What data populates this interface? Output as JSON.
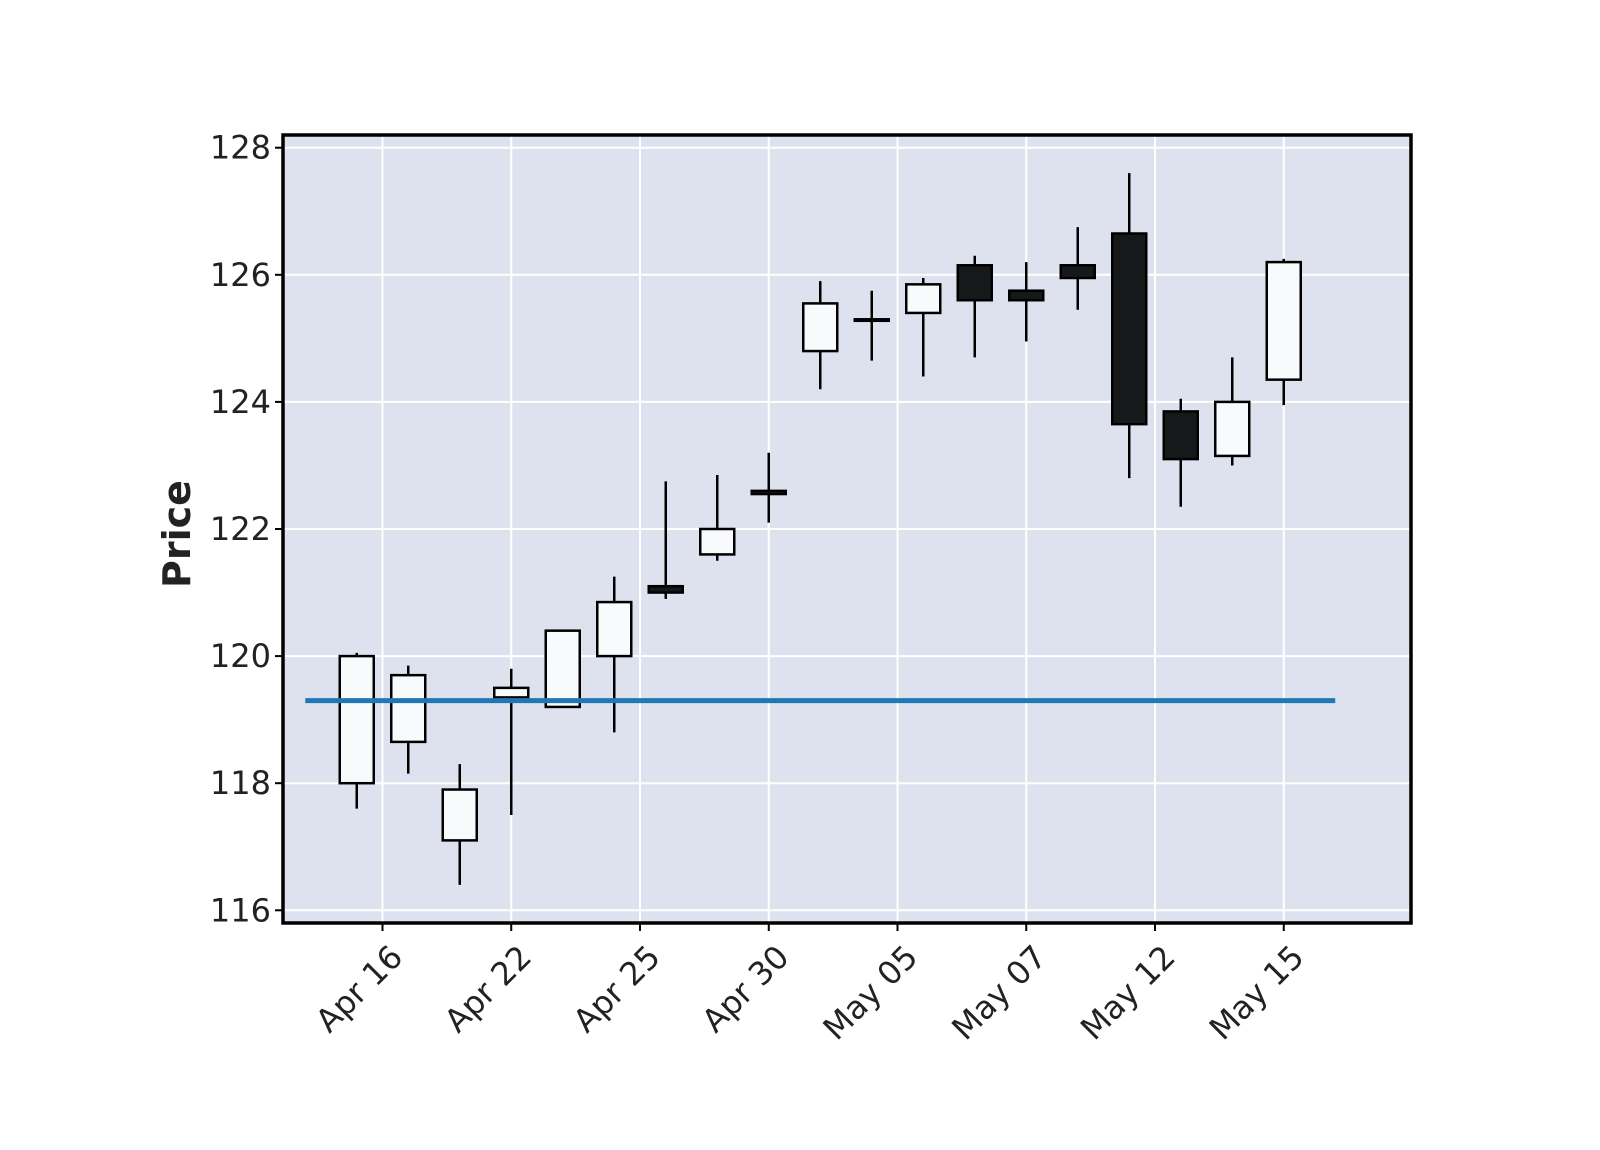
{
  "chart_data": {
    "type": "candlestick",
    "title": "",
    "xlabel": "",
    "ylabel": "Price",
    "ylim": [
      115.8,
      128.2
    ],
    "yticks": [
      116,
      118,
      120,
      122,
      124,
      126,
      128
    ],
    "grid": true,
    "legend": "none",
    "x_tick_labels": [
      "Apr 16",
      "Apr 22",
      "Apr 25",
      "Apr 30",
      "May 05",
      "May 07",
      "May 12",
      "May 15"
    ],
    "x_tick_indices": [
      0.5,
      3,
      5.5,
      8,
      10.5,
      13,
      15.5,
      18
    ],
    "candles": [
      {
        "open": 118.0,
        "high": 120.05,
        "low": 117.6,
        "close": 120.0
      },
      {
        "open": 118.65,
        "high": 119.85,
        "low": 118.15,
        "close": 119.7
      },
      {
        "open": 117.1,
        "high": 118.3,
        "low": 116.4,
        "close": 117.9
      },
      {
        "open": 119.35,
        "high": 119.8,
        "low": 117.5,
        "close": 119.5
      },
      {
        "open": 119.2,
        "high": 120.4,
        "low": 119.2,
        "close": 120.4
      },
      {
        "open": 120.0,
        "high": 121.25,
        "low": 118.8,
        "close": 120.85
      },
      {
        "open": 121.1,
        "high": 122.75,
        "low": 120.9,
        "close": 121.0
      },
      {
        "open": 121.6,
        "high": 122.85,
        "low": 121.5,
        "close": 122.0
      },
      {
        "open": 122.6,
        "high": 123.2,
        "low": 122.1,
        "close": 122.55
      },
      {
        "open": 124.8,
        "high": 125.9,
        "low": 124.2,
        "close": 125.55
      },
      {
        "open": 125.3,
        "high": 125.75,
        "low": 124.65,
        "close": 125.3
      },
      {
        "open": 125.4,
        "high": 125.95,
        "low": 124.4,
        "close": 125.85
      },
      {
        "open": 126.15,
        "high": 126.3,
        "low": 124.7,
        "close": 125.6
      },
      {
        "open": 125.75,
        "high": 126.2,
        "low": 124.95,
        "close": 125.6
      },
      {
        "open": 126.15,
        "high": 126.75,
        "low": 125.45,
        "close": 125.95
      },
      {
        "open": 126.65,
        "high": 127.6,
        "low": 122.8,
        "close": 123.65
      },
      {
        "open": 123.85,
        "high": 124.05,
        "low": 122.35,
        "close": 123.1
      },
      {
        "open": 123.15,
        "high": 124.7,
        "low": 123.0,
        "close": 124.0
      },
      {
        "open": 124.35,
        "high": 126.25,
        "low": 123.95,
        "close": 126.2
      }
    ],
    "hline": {
      "value": 119.3,
      "color": "#1f77b4"
    },
    "colors": {
      "up_fill": "#f9fafc",
      "down_fill": "#17181a",
      "edge": "#000000",
      "plot_bg": "#dee2ee",
      "grid": "#ffffff"
    }
  }
}
